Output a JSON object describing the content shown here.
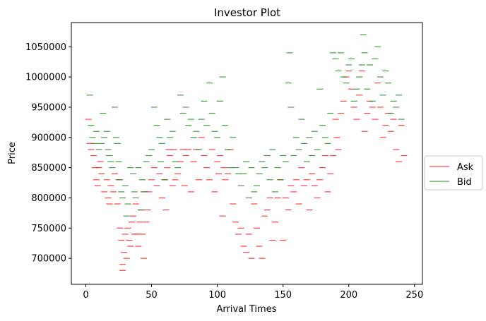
{
  "chart_data": {
    "type": "scatter",
    "title": "Investor Plot",
    "xlabel": "Arrival Times",
    "ylabel": "Price",
    "xlim": [
      -11,
      256
    ],
    "ylim": [
      657000,
      1090000
    ],
    "xticks": [
      0,
      50,
      100,
      150,
      200,
      250
    ],
    "yticks": [
      700000,
      750000,
      800000,
      850000,
      900000,
      950000,
      1000000,
      1050000
    ],
    "ytick_labels": [
      "700000",
      "750000",
      "800000",
      "850000",
      "900000",
      "950000",
      "1000000",
      "1050000"
    ],
    "xtick_labels": [
      "0",
      "50",
      "100",
      "150",
      "200",
      "250"
    ],
    "grid": false,
    "legend_position": "outside-right",
    "marker": "short horizontal dash",
    "series": [
      {
        "name": "Ask",
        "color": "#ff0000",
        "points": [
          [
            2,
            930000
          ],
          [
            3,
            890000
          ],
          [
            4,
            880000
          ],
          [
            6,
            870000
          ],
          [
            7,
            850000
          ],
          [
            8,
            830000
          ],
          [
            9,
            820000
          ],
          [
            10,
            850000
          ],
          [
            11,
            860000
          ],
          [
            12,
            840000
          ],
          [
            14,
            810000
          ],
          [
            16,
            830000
          ],
          [
            17,
            800000
          ],
          [
            18,
            790000
          ],
          [
            19,
            820000
          ],
          [
            21,
            810000
          ],
          [
            22,
            840000
          ],
          [
            24,
            790000
          ],
          [
            25,
            830000
          ],
          [
            26,
            750000
          ],
          [
            27,
            730000
          ],
          [
            28,
            690000
          ],
          [
            28,
            680000
          ],
          [
            29,
            710000
          ],
          [
            30,
            740000
          ],
          [
            31,
            700000
          ],
          [
            32,
            750000
          ],
          [
            33,
            730000
          ],
          [
            34,
            720000
          ],
          [
            35,
            760000
          ],
          [
            36,
            770000
          ],
          [
            37,
            740000
          ],
          [
            38,
            790000
          ],
          [
            39,
            740000
          ],
          [
            40,
            720000
          ],
          [
            41,
            760000
          ],
          [
            42,
            780000
          ],
          [
            43,
            740000
          ],
          [
            44,
            700000
          ],
          [
            45,
            810000
          ],
          [
            46,
            760000
          ],
          [
            47,
            780000
          ],
          [
            48,
            810000
          ],
          [
            50,
            830000
          ],
          [
            52,
            850000
          ],
          [
            54,
            820000
          ],
          [
            56,
            840000
          ],
          [
            58,
            800000
          ],
          [
            60,
            830000
          ],
          [
            61,
            780000
          ],
          [
            62,
            850000
          ],
          [
            63,
            880000
          ],
          [
            64,
            870000
          ],
          [
            66,
            820000
          ],
          [
            67,
            880000
          ],
          [
            68,
            830000
          ],
          [
            70,
            840000
          ],
          [
            72,
            860000
          ],
          [
            74,
            880000
          ],
          [
            75,
            820000
          ],
          [
            76,
            870000
          ],
          [
            78,
            880000
          ],
          [
            80,
            810000
          ],
          [
            82,
            860000
          ],
          [
            84,
            880000
          ],
          [
            86,
            830000
          ],
          [
            88,
            900000
          ],
          [
            90,
            870000
          ],
          [
            92,
            850000
          ],
          [
            94,
            830000
          ],
          [
            96,
            880000
          ],
          [
            98,
            810000
          ],
          [
            100,
            860000
          ],
          [
            101,
            840000
          ],
          [
            102,
            870000
          ],
          [
            104,
            770000
          ],
          [
            105,
            850000
          ],
          [
            106,
            830000
          ],
          [
            108,
            840000
          ],
          [
            110,
            880000
          ],
          [
            112,
            790000
          ],
          [
            114,
            760000
          ],
          [
            116,
            740000
          ],
          [
            118,
            750000
          ],
          [
            120,
            720000
          ],
          [
            122,
            710000
          ],
          [
            124,
            740000
          ],
          [
            126,
            700000
          ],
          [
            128,
            790000
          ],
          [
            130,
            750000
          ],
          [
            132,
            720000
          ],
          [
            134,
            700000
          ],
          [
            136,
            770000
          ],
          [
            138,
            780000
          ],
          [
            140,
            800000
          ],
          [
            142,
            730000
          ],
          [
            144,
            760000
          ],
          [
            146,
            800000
          ],
          [
            148,
            830000
          ],
          [
            150,
            730000
          ],
          [
            152,
            800000
          ],
          [
            154,
            780000
          ],
          [
            156,
            820000
          ],
          [
            158,
            810000
          ],
          [
            160,
            830000
          ],
          [
            162,
            790000
          ],
          [
            164,
            850000
          ],
          [
            166,
            820000
          ],
          [
            168,
            830000
          ],
          [
            170,
            780000
          ],
          [
            172,
            840000
          ],
          [
            174,
            820000
          ],
          [
            176,
            800000
          ],
          [
            178,
            830000
          ],
          [
            180,
            850000
          ],
          [
            182,
            870000
          ],
          [
            184,
            810000
          ],
          [
            186,
            840000
          ],
          [
            188,
            870000
          ],
          [
            190,
            930000
          ],
          [
            191,
            900000
          ],
          [
            192,
            880000
          ],
          [
            194,
            940000
          ],
          [
            196,
            960000
          ],
          [
            198,
            1000000
          ],
          [
            200,
            1010000
          ],
          [
            202,
            980000
          ],
          [
            204,
            950000
          ],
          [
            206,
            930000
          ],
          [
            208,
            970000
          ],
          [
            210,
            1010000
          ],
          [
            212,
            910000
          ],
          [
            214,
            940000
          ],
          [
            216,
            960000
          ],
          [
            218,
            950000
          ],
          [
            220,
            930000
          ],
          [
            222,
            990000
          ],
          [
            224,
            950000
          ],
          [
            226,
            900000
          ],
          [
            228,
            920000
          ],
          [
            230,
            940000
          ],
          [
            232,
            910000
          ],
          [
            234,
            930000
          ],
          [
            236,
            880000
          ],
          [
            238,
            860000
          ],
          [
            240,
            920000
          ],
          [
            242,
            870000
          ]
        ]
      },
      {
        "name": "Bid",
        "color": "#008000",
        "points": [
          [
            3,
            970000
          ],
          [
            4,
            920000
          ],
          [
            5,
            900000
          ],
          [
            7,
            890000
          ],
          [
            8,
            910000
          ],
          [
            10,
            880000
          ],
          [
            12,
            890000
          ],
          [
            13,
            940000
          ],
          [
            14,
            900000
          ],
          [
            16,
            910000
          ],
          [
            17,
            880000
          ],
          [
            18,
            870000
          ],
          [
            19,
            860000
          ],
          [
            20,
            850000
          ],
          [
            22,
            950000
          ],
          [
            23,
            900000
          ],
          [
            24,
            890000
          ],
          [
            25,
            860000
          ],
          [
            26,
            830000
          ],
          [
            27,
            810000
          ],
          [
            28,
            800000
          ],
          [
            30,
            820000
          ],
          [
            31,
            770000
          ],
          [
            32,
            790000
          ],
          [
            34,
            850000
          ],
          [
            36,
            840000
          ],
          [
            37,
            810000
          ],
          [
            38,
            800000
          ],
          [
            40,
            850000
          ],
          [
            42,
            780000
          ],
          [
            43,
            830000
          ],
          [
            44,
            810000
          ],
          [
            46,
            860000
          ],
          [
            48,
            870000
          ],
          [
            50,
            880000
          ],
          [
            52,
            950000
          ],
          [
            54,
            920000
          ],
          [
            56,
            900000
          ],
          [
            57,
            860000
          ],
          [
            58,
            890000
          ],
          [
            60,
            830000
          ],
          [
            62,
            930000
          ],
          [
            64,
            900000
          ],
          [
            66,
            910000
          ],
          [
            68,
            860000
          ],
          [
            70,
            850000
          ],
          [
            72,
            970000
          ],
          [
            74,
            940000
          ],
          [
            76,
            950000
          ],
          [
            78,
            920000
          ],
          [
            80,
            930000
          ],
          [
            82,
            900000
          ],
          [
            84,
            910000
          ],
          [
            86,
            880000
          ],
          [
            88,
            930000
          ],
          [
            90,
            960000
          ],
          [
            92,
            920000
          ],
          [
            94,
            990000
          ],
          [
            96,
            940000
          ],
          [
            98,
            910000
          ],
          [
            100,
            900000
          ],
          [
            102,
            960000
          ],
          [
            104,
            1000000
          ],
          [
            106,
            920000
          ],
          [
            108,
            880000
          ],
          [
            110,
            850000
          ],
          [
            112,
            900000
          ],
          [
            114,
            850000
          ],
          [
            116,
            840000
          ],
          [
            118,
            820000
          ],
          [
            120,
            840000
          ],
          [
            122,
            860000
          ],
          [
            124,
            800000
          ],
          [
            126,
            850000
          ],
          [
            128,
            810000
          ],
          [
            130,
            820000
          ],
          [
            132,
            840000
          ],
          [
            134,
            860000
          ],
          [
            136,
            850000
          ],
          [
            138,
            870000
          ],
          [
            140,
            830000
          ],
          [
            142,
            880000
          ],
          [
            144,
            810000
          ],
          [
            146,
            850000
          ],
          [
            148,
            830000
          ],
          [
            150,
            870000
          ],
          [
            152,
            860000
          ],
          [
            154,
            990000
          ],
          [
            155,
            1040000
          ],
          [
            156,
            950000
          ],
          [
            158,
            870000
          ],
          [
            160,
            900000
          ],
          [
            162,
            880000
          ],
          [
            164,
            930000
          ],
          [
            166,
            890000
          ],
          [
            168,
            860000
          ],
          [
            170,
            900000
          ],
          [
            172,
            870000
          ],
          [
            174,
            910000
          ],
          [
            176,
            880000
          ],
          [
            178,
            980000
          ],
          [
            180,
            920000
          ],
          [
            182,
            900000
          ],
          [
            184,
            890000
          ],
          [
            186,
            940000
          ],
          [
            188,
            1040000
          ],
          [
            190,
            1030000
          ],
          [
            192,
            1010000
          ],
          [
            194,
            1040000
          ],
          [
            196,
            1000000
          ],
          [
            198,
            990000
          ],
          [
            200,
            1020000
          ],
          [
            202,
            1030000
          ],
          [
            204,
            960000
          ],
          [
            206,
            980000
          ],
          [
            208,
            1000000
          ],
          [
            210,
            1020000
          ],
          [
            211,
            1070000
          ],
          [
            212,
            1040000
          ],
          [
            214,
            980000
          ],
          [
            216,
            1020000
          ],
          [
            218,
            960000
          ],
          [
            220,
            1030000
          ],
          [
            222,
            1050000
          ],
          [
            224,
            1000000
          ],
          [
            226,
            970000
          ],
          [
            228,
            1010000
          ],
          [
            230,
            990000
          ],
          [
            232,
            940000
          ],
          [
            234,
            960000
          ],
          [
            236,
            950000
          ],
          [
            238,
            970000
          ],
          [
            240,
            930000
          ]
        ]
      }
    ]
  }
}
